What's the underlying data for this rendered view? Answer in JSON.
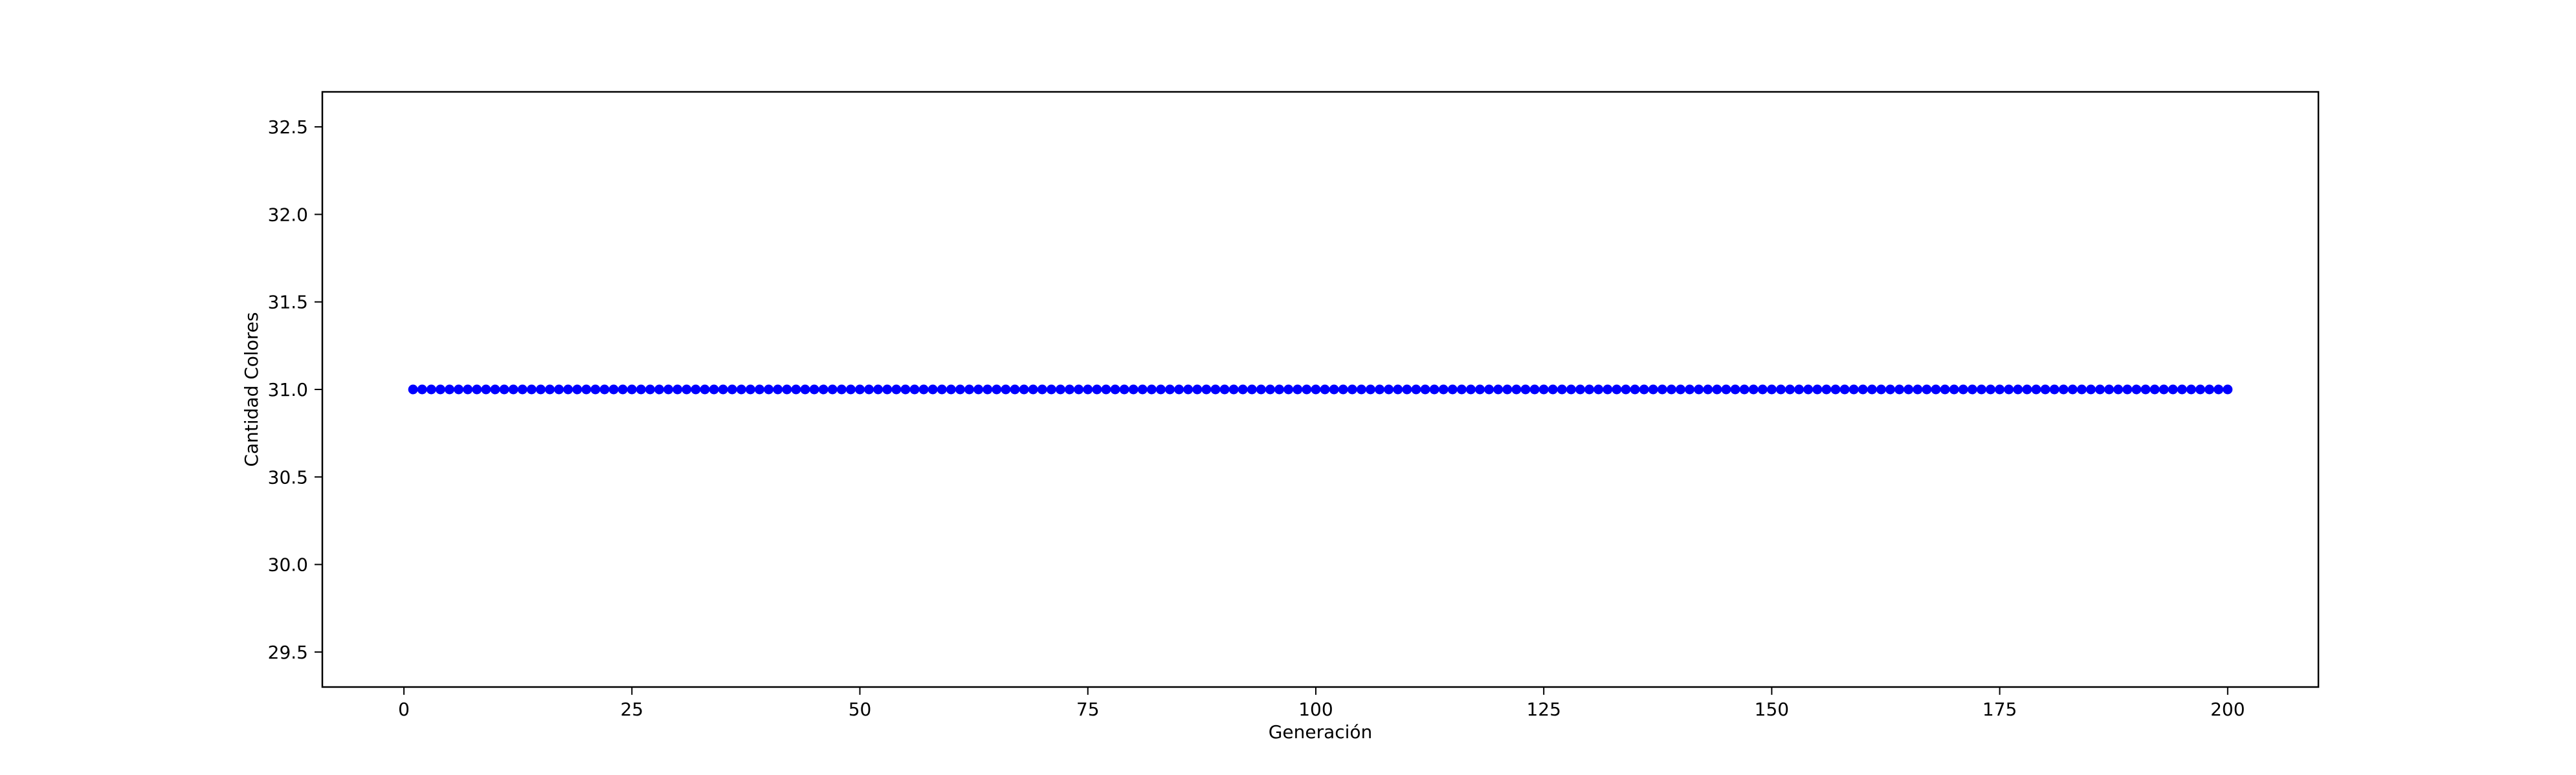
{
  "chart_data": {
    "type": "line",
    "title": "",
    "xlabel": "Generación",
    "ylabel": "Cantidad Colores",
    "xlim": [
      -8.95,
      209.95
    ],
    "ylim": [
      29.3,
      32.7
    ],
    "xticks": [
      0,
      25,
      50,
      75,
      100,
      125,
      150,
      175,
      200
    ],
    "xtick_labels": [
      "0",
      "25",
      "50",
      "75",
      "100",
      "125",
      "150",
      "175",
      "200"
    ],
    "yticks": [
      29.5,
      30.0,
      30.5,
      31.0,
      31.5,
      32.0,
      32.5
    ],
    "ytick_labels": [
      "29.5",
      "30.0",
      "30.5",
      "31.0",
      "31.5",
      "32.0",
      "32.5"
    ],
    "grid": false,
    "legend": "none",
    "series": [
      {
        "color": "#0000ff",
        "marker": "circle",
        "x_start": 1,
        "x_end": 200,
        "x_step": 1,
        "y_constant": 31.0
      }
    ]
  }
}
